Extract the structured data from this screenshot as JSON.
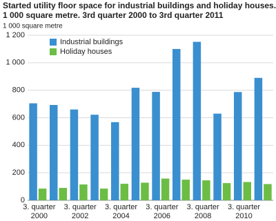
{
  "chart_data": {
    "type": "bar",
    "title": "Started utility floor space for industrial buildings and holiday houses.\n1 000 square metre. 3rd quarter 2000 to 3rd quarter 2011",
    "y_label": "1 000 square metre",
    "categories": [
      "3. quarter\n2000",
      null,
      "3. quarter\n2002",
      null,
      "3. quarter\n2004",
      null,
      "3. quarter\n2006",
      null,
      "3. quarter\n2008",
      null,
      "3. quarter\n2010",
      null
    ],
    "series": [
      {
        "name": "Industrial buildings",
        "color": "#3a8fcf",
        "values": [
          705,
          693,
          660,
          622,
          568,
          818,
          788,
          1100,
          1152,
          630,
          787,
          890
        ]
      },
      {
        "name": "Holiday houses",
        "color": "#6cbd45",
        "values": [
          85,
          90,
          115,
          85,
          120,
          128,
          158,
          150,
          145,
          125,
          133,
          118
        ]
      }
    ],
    "ylim": [
      0,
      1200
    ],
    "yticks": [
      0,
      200,
      400,
      600,
      800,
      {
        "value": 1000,
        "label": "1 000"
      },
      {
        "value": 1200,
        "label": "1 200"
      }
    ],
    "grid": true,
    "legend": "upper-left"
  }
}
